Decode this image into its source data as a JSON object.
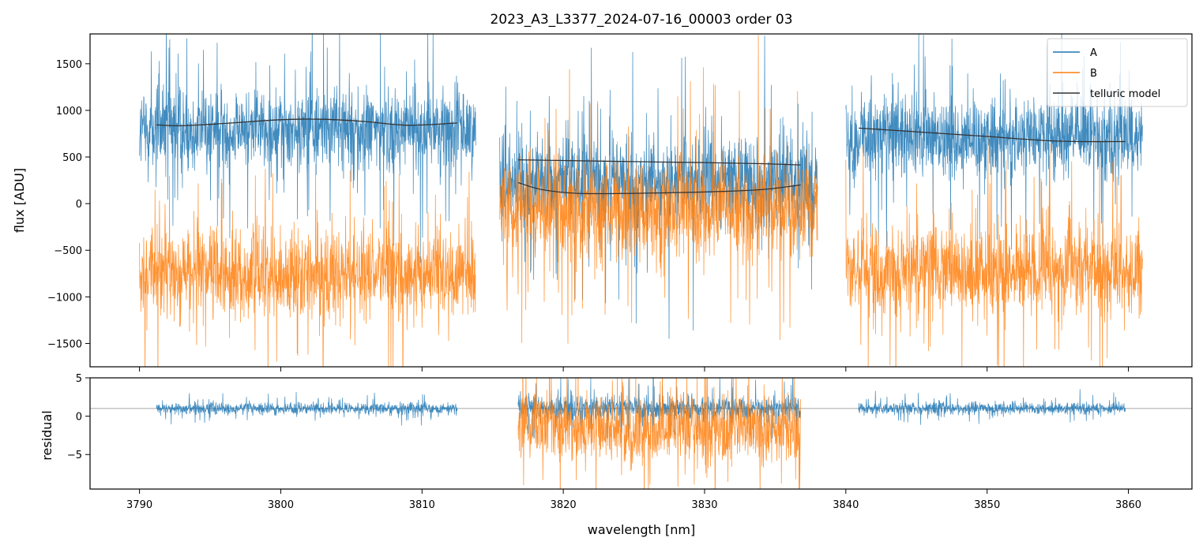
{
  "chart_data": {
    "type": "line",
    "title": "2023_A3_L3377_2024-07-16_00003  order 03",
    "xlabel": "wavelength [nm]",
    "xlim": [
      3786.5,
      3864.5
    ],
    "x_ticks": [
      3790,
      3800,
      3810,
      3820,
      3830,
      3840,
      3850,
      3860
    ],
    "panels": [
      {
        "id": "flux",
        "ylabel": "flux [ADU]",
        "ylim": [
          -1750,
          1820
        ],
        "y_ticks": [
          -1500,
          -1000,
          -500,
          0,
          500,
          1000,
          1500
        ],
        "legend": {
          "placement": "upper right",
          "entries": [
            "A",
            "B",
            "telluric model"
          ]
        },
        "series": [
          {
            "name": "A",
            "color": "#1f77b4",
            "kind": "noisy-spectrum",
            "segments": [
              {
                "x_start": 3790.0,
                "x_end": 3813.8,
                "mean": 800,
                "spread": 300
              },
              {
                "x_start": 3815.5,
                "x_end": 3838.0,
                "mean": 250,
                "spread": 330
              },
              {
                "x_start": 3840.0,
                "x_end": 3861.0,
                "mean": 720,
                "spread": 300
              }
            ]
          },
          {
            "name": "B",
            "color": "#ff7f0e",
            "kind": "noisy-spectrum",
            "segments": [
              {
                "x_start": 3790.0,
                "x_end": 3813.8,
                "mean": -750,
                "spread": 330
              },
              {
                "x_start": 3815.5,
                "x_end": 3838.0,
                "mean": -50,
                "spread": 380
              },
              {
                "x_start": 3840.0,
                "x_end": 3861.0,
                "mean": -720,
                "spread": 330
              }
            ]
          },
          {
            "name": "telluric model",
            "color": "#333333",
            "kind": "model",
            "curves": [
              {
                "x": [
                  3791.2,
                  3793,
                  3796,
                  3800,
                  3803,
                  3806,
                  3809,
                  3812.5
                ],
                "y": [
                  845,
                  835,
                  860,
                  900,
                  905,
                  880,
                  840,
                  865
                ]
              },
              {
                "x": [
                  3816.8,
                  3820,
                  3825,
                  3830,
                  3834,
                  3836.8
                ],
                "y": [
                  470,
                  462,
                  450,
                  440,
                  428,
                  415
                ]
              },
              {
                "x": [
                  3816.8,
                  3818.5,
                  3821,
                  3825,
                  3830,
                  3834,
                  3836.8
                ],
                "y": [
                  225,
                  150,
                  110,
                  110,
                  125,
                  150,
                  200
                ]
              },
              {
                "x": [
                  3840.9,
                  3845,
                  3850,
                  3855,
                  3859.8
                ],
                "y": [
                  810,
                  770,
                  720,
                  670,
                  665
                ]
              }
            ]
          }
        ]
      },
      {
        "id": "residual",
        "ylabel": "residual",
        "ylim": [
          -9.5,
          5
        ],
        "y_ticks": [
          -5,
          0,
          5
        ],
        "reference_line": 1,
        "series": [
          {
            "name": "A",
            "color": "#1f77b4",
            "kind": "noisy-spectrum",
            "segments": [
              {
                "x_start": 3791.2,
                "x_end": 3812.5,
                "mean": 1.0,
                "spread": 0.5
              },
              {
                "x_start": 3816.8,
                "x_end": 3836.8,
                "mean": 1.0,
                "spread": 1.1
              },
              {
                "x_start": 3840.9,
                "x_end": 3859.8,
                "mean": 1.0,
                "spread": 0.55
              }
            ]
          },
          {
            "name": "B",
            "color": "#ff7f0e",
            "kind": "noisy-spectrum",
            "segments": [
              {
                "x_start": 3816.8,
                "x_end": 3836.8,
                "mean": -1.5,
                "spread": 3.0
              }
            ]
          }
        ]
      }
    ]
  }
}
